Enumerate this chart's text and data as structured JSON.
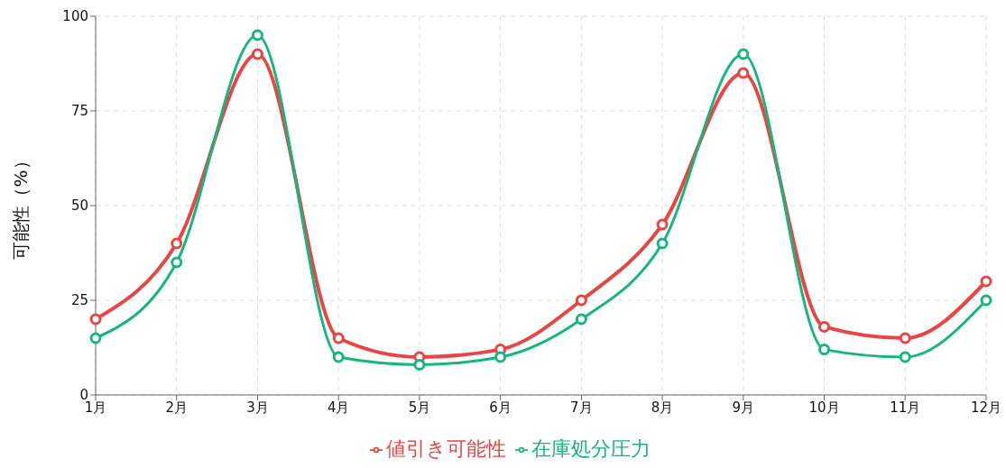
{
  "chart_data": {
    "type": "line",
    "ylabel": "可能性（%）",
    "categories": [
      "1月",
      "2月",
      "3月",
      "4月",
      "5月",
      "6月",
      "7月",
      "8月",
      "9月",
      "10月",
      "11月",
      "12月"
    ],
    "series": [
      {
        "name": "値引き可能性",
        "color": "#e84545",
        "values": [
          20,
          40,
          90,
          15,
          10,
          12,
          25,
          45,
          85,
          18,
          15,
          30
        ]
      },
      {
        "name": "在庫処分圧力",
        "color": "#17b57f",
        "values": [
          15,
          35,
          95,
          10,
          8,
          10,
          20,
          40,
          90,
          12,
          10,
          25
        ]
      }
    ],
    "ylim": [
      0,
      100
    ],
    "yticks": [
      0,
      25,
      50,
      75,
      100
    ],
    "grid": true,
    "legend": "bottom",
    "marker": "circle",
    "line_style": "solid"
  }
}
